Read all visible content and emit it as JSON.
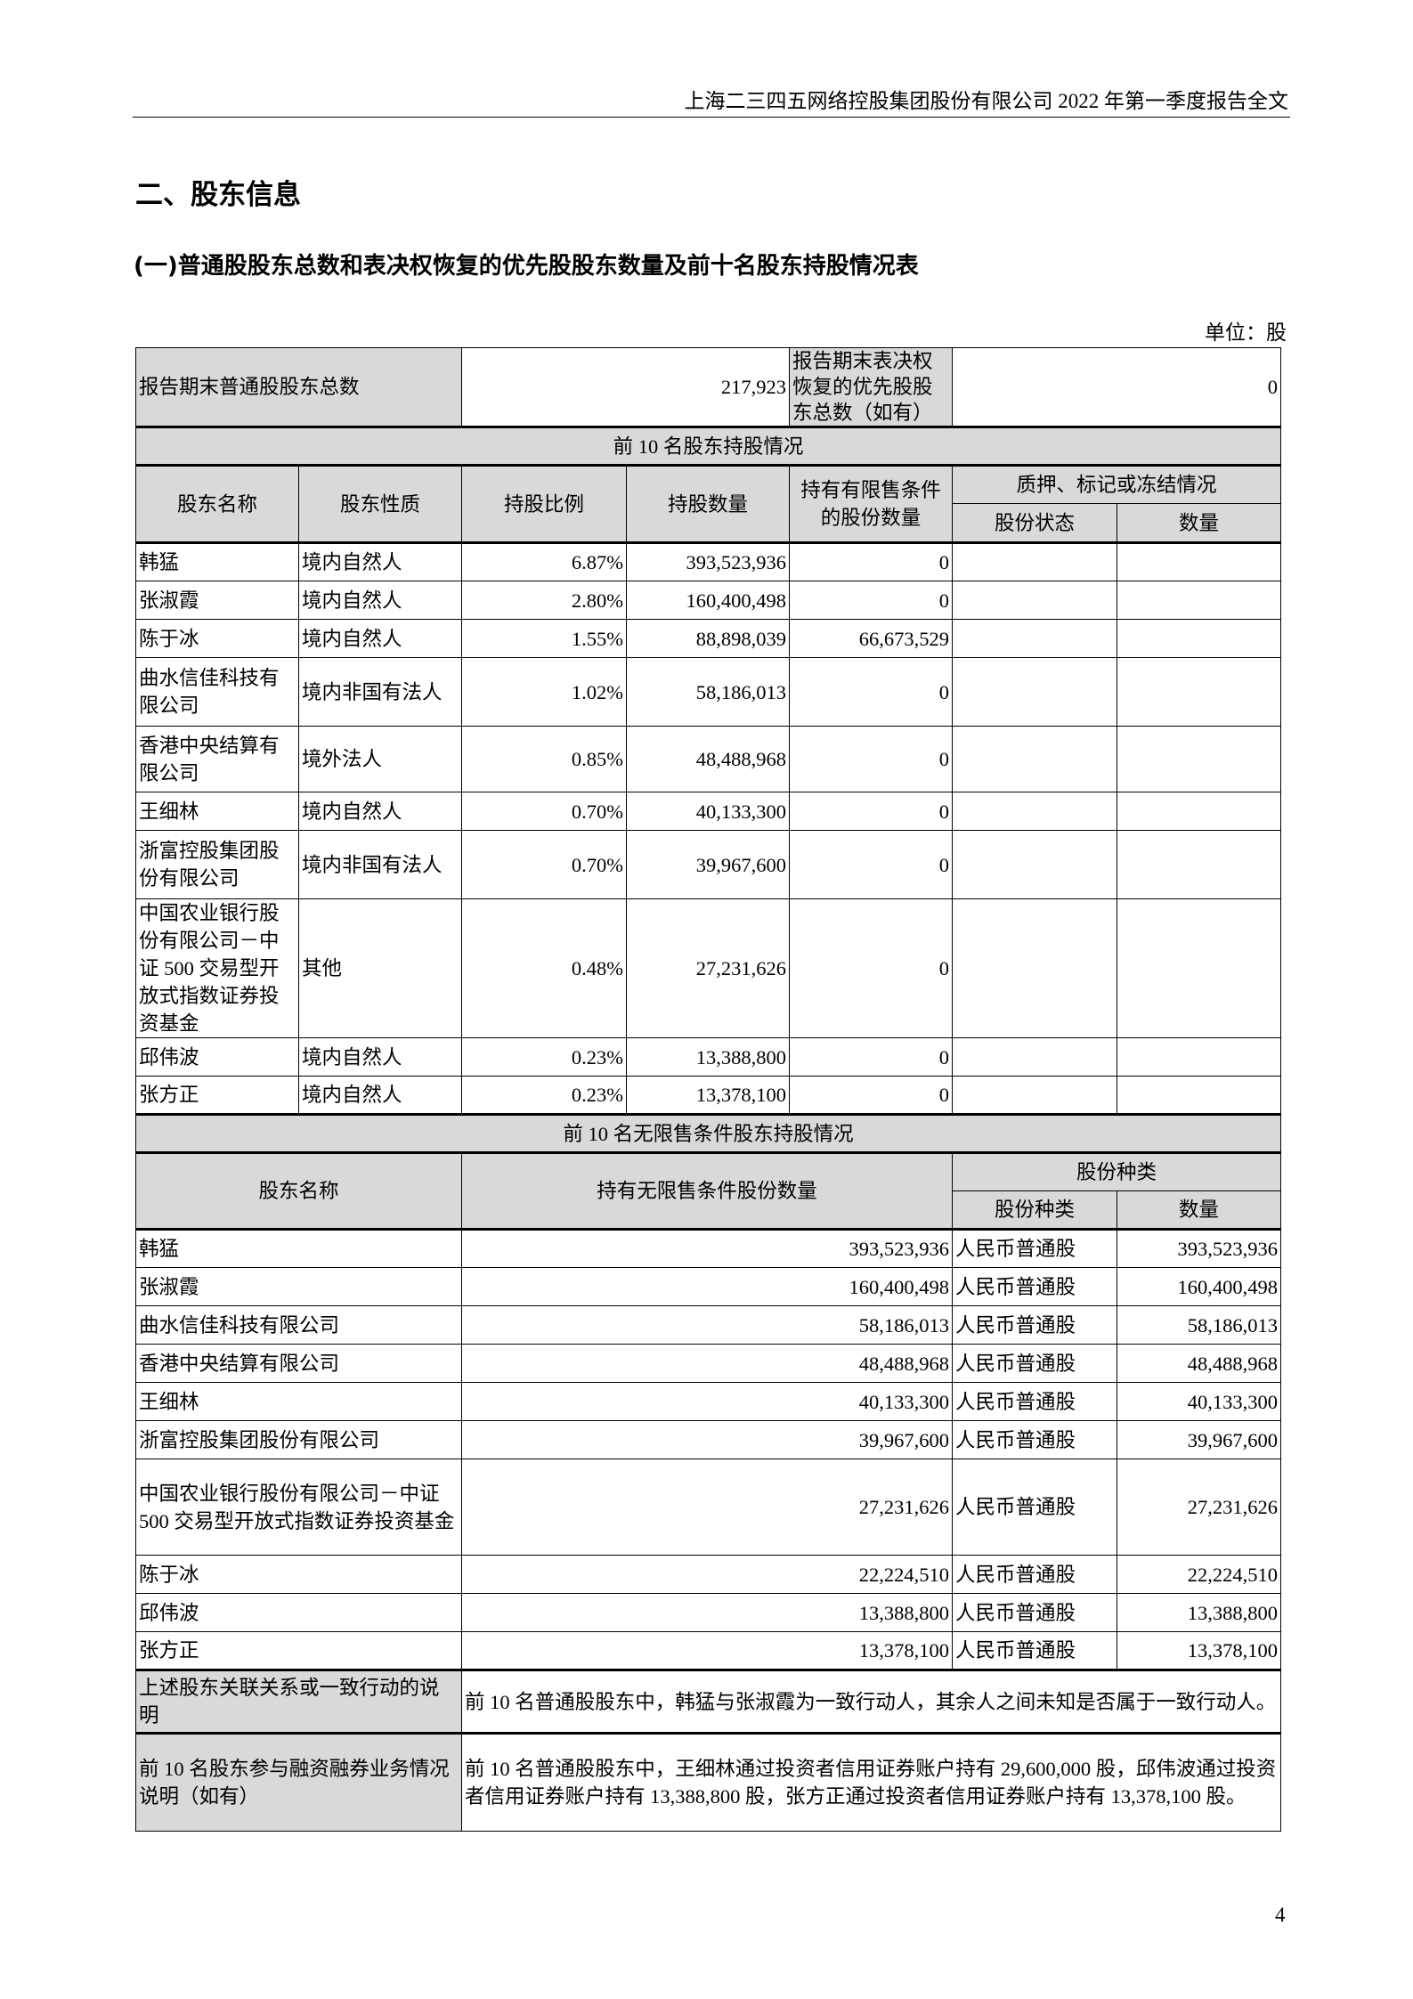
{
  "header": "上海二三四五网络控股集团股份有限公司 2022 年第一季度报告全文",
  "section_title": "二、股东信息",
  "subsection_title": "(一)普通股股东总数和表决权恢复的优先股股东数量及前十名股东持股情况表",
  "unit": "单位：股",
  "summary": {
    "label1": "报告期末普通股股东总数",
    "value1": "217,923",
    "label2": "报告期末表决权恢复的优先股股东总数（如有）",
    "value2": "0"
  },
  "top10": {
    "title": "前 10 名股东持股情况",
    "headers": [
      "股东名称",
      "股东性质",
      "持股比例",
      "持股数量",
      "持有有限售条件的股份数量",
      "质押、标记或冻结情况",
      "股份状态",
      "数量"
    ],
    "rows": [
      [
        "韩猛",
        "境内自然人",
        "6.87%",
        "393,523,936",
        "0"
      ],
      [
        "张淑霞",
        "境内自然人",
        "2.80%",
        "160,400,498",
        "0"
      ],
      [
        "陈于冰",
        "境内自然人",
        "1.55%",
        "88,898,039",
        "66,673,529"
      ],
      [
        "曲水信佳科技有限公司",
        "境内非国有法人",
        "1.02%",
        "58,186,013",
        "0"
      ],
      [
        "香港中央结算有限公司",
        "境外法人",
        "0.85%",
        "48,488,968",
        "0"
      ],
      [
        "王细林",
        "境内自然人",
        "0.70%",
        "40,133,300",
        "0"
      ],
      [
        "浙富控股集团股份有限公司",
        "境内非国有法人",
        "0.70%",
        "39,967,600",
        "0"
      ],
      [
        "中国农业银行股份有限公司－中证 500 交易型开放式指数证券投资基金",
        "其他",
        "0.48%",
        "27,231,626",
        "0"
      ],
      [
        "邱伟波",
        "境内自然人",
        "0.23%",
        "13,388,800",
        "0"
      ],
      [
        "张方正",
        "境内自然人",
        "0.23%",
        "13,378,100",
        "0"
      ]
    ]
  },
  "unrestricted": {
    "title": "前 10 名无限售条件股东持股情况",
    "headers": [
      "股东名称",
      "持有无限售条件股份数量",
      "股份种类",
      "股份种类",
      "数量"
    ],
    "rows": [
      [
        "韩猛",
        "393,523,936",
        "人民币普通股",
        "393,523,936"
      ],
      [
        "张淑霞",
        "160,400,498",
        "人民币普通股",
        "160,400,498"
      ],
      [
        "曲水信佳科技有限公司",
        "58,186,013",
        "人民币普通股",
        "58,186,013"
      ],
      [
        "香港中央结算有限公司",
        "48,488,968",
        "人民币普通股",
        "48,488,968"
      ],
      [
        "王细林",
        "40,133,300",
        "人民币普通股",
        "40,133,300"
      ],
      [
        "浙富控股集团股份有限公司",
        "39,967,600",
        "人民币普通股",
        "39,967,600"
      ],
      [
        "中国农业银行股份有限公司－中证 500 交易型开放式指数证券投资基金",
        "27,231,626",
        "人民币普通股",
        "27,231,626"
      ],
      [
        "陈于冰",
        "22,224,510",
        "人民币普通股",
        "22,224,510"
      ],
      [
        "邱伟波",
        "13,388,800",
        "人民币普通股",
        "13,388,800"
      ],
      [
        "张方正",
        "13,378,100",
        "人民币普通股",
        "13,378,100"
      ]
    ]
  },
  "notes": [
    {
      "label": "上述股东关联关系或一致行动的说明",
      "text": "前 10 名普通股股东中，韩猛与张淑霞为一致行动人，其余人之间未知是否属于一致行动人。"
    },
    {
      "label": "前 10 名股东参与融资融券业务情况说明（如有）",
      "text": "前 10 名普通股股东中，王细林通过投资者信用证券账户持有 29,600,000 股，邱伟波通过投资者信用证券账户持有 13,388,800 股，张方正通过投资者信用证券账户持有 13,378,100 股。"
    }
  ],
  "page_number": "4"
}
